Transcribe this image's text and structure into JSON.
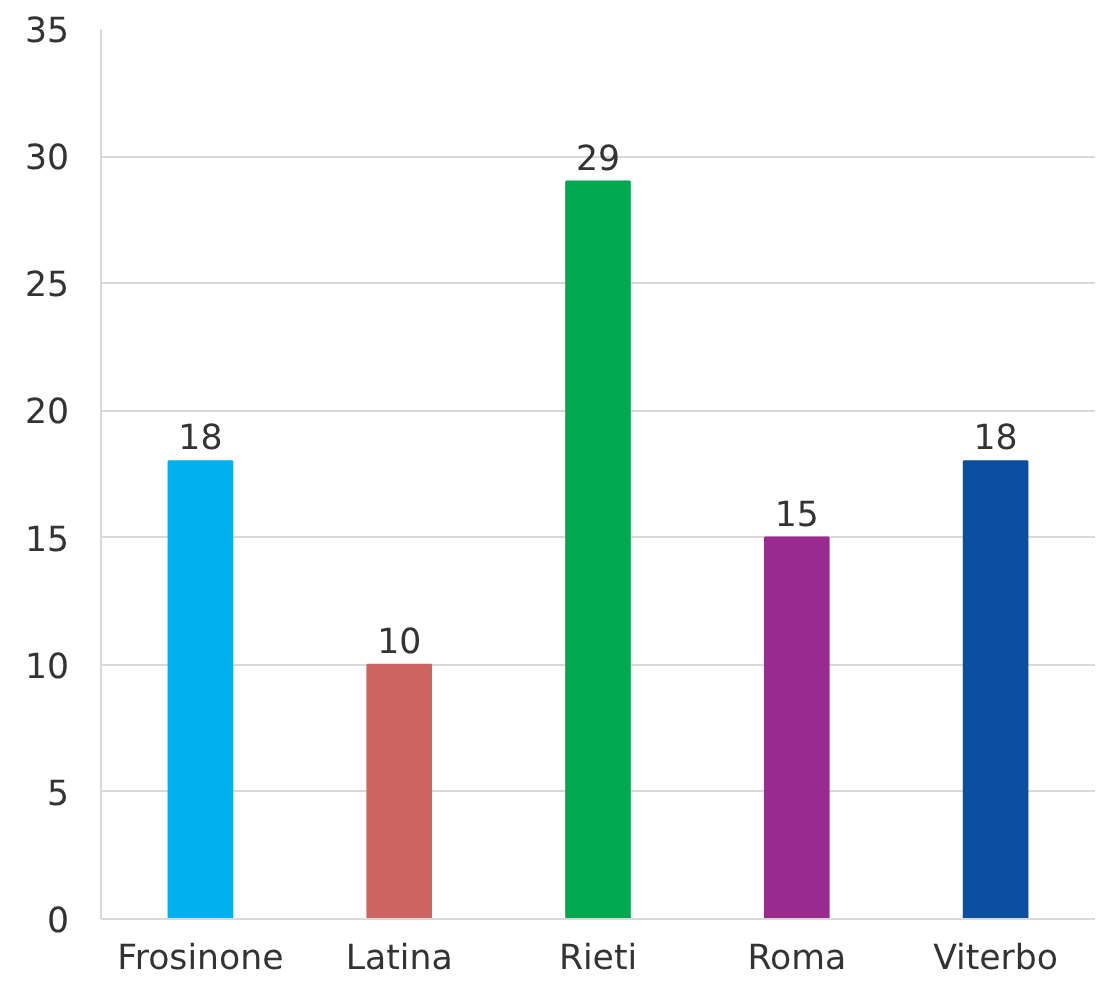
{
  "chart_data": {
    "type": "bar",
    "categories": [
      "Frosinone",
      "Latina",
      "Rieti",
      "Roma",
      "Viterbo"
    ],
    "values": [
      18,
      10,
      29,
      15,
      18
    ],
    "colors": [
      "#00b0f0",
      "#cd6462",
      "#00a850",
      "#9b2a8e",
      "#0a4fa0"
    ],
    "ylim": [
      0,
      35
    ],
    "yticks": [
      0,
      5,
      10,
      15,
      20,
      25,
      30,
      35
    ],
    "grid": "y",
    "data_labels": true
  }
}
